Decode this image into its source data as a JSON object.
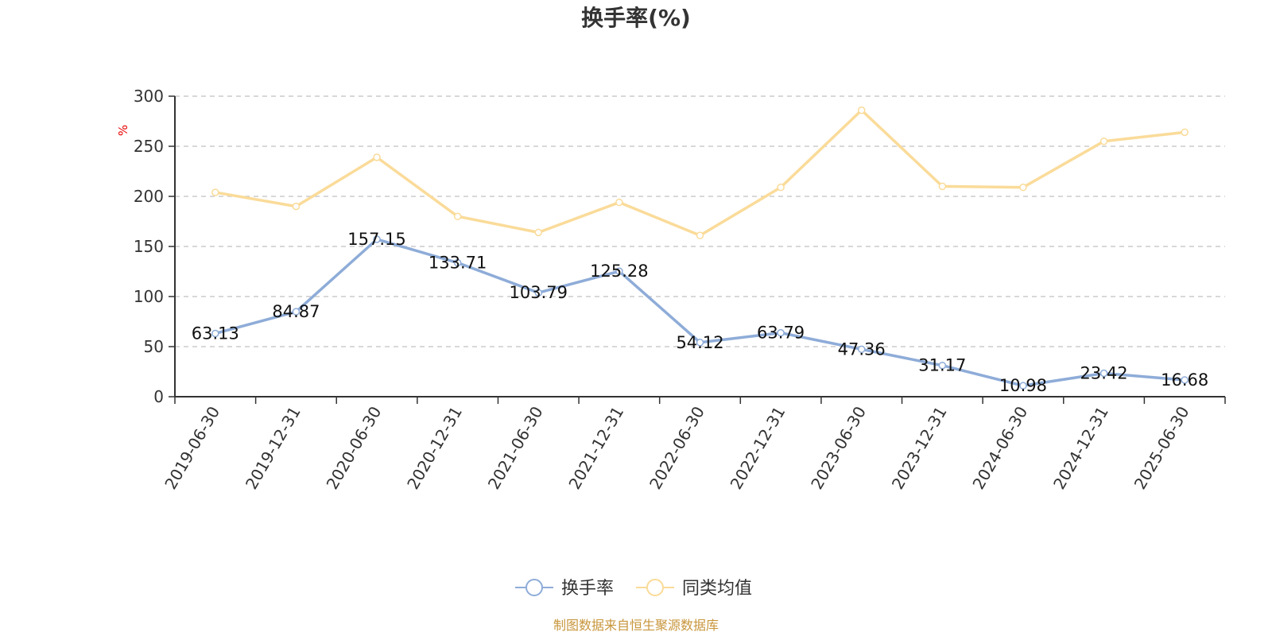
{
  "chart_data": {
    "type": "line",
    "title": "换手率(%)",
    "ylabel": "%",
    "ylim": [
      0,
      300
    ],
    "yticks": [
      0,
      50,
      100,
      150,
      200,
      250,
      300
    ],
    "categories": [
      "2019-06-30",
      "2019-12-31",
      "2020-06-30",
      "2020-12-31",
      "2021-06-30",
      "2021-12-31",
      "2022-06-30",
      "2022-12-31",
      "2023-06-30",
      "2023-12-31",
      "2024-06-30",
      "2024-12-31",
      "2025-06-30"
    ],
    "series": [
      {
        "name": "换手率",
        "color": "#8eacd8",
        "values": [
          63.13,
          84.87,
          157.15,
          133.71,
          103.79,
          125.28,
          54.12,
          63.79,
          47.36,
          31.17,
          10.98,
          23.42,
          16.68
        ],
        "labels": [
          "63.13",
          "84.87",
          "157.15",
          "133.71",
          "103.79",
          "125.28",
          "54.12",
          "63.79",
          "47.36",
          "31.17",
          "10.98",
          "23.42",
          "16.68"
        ]
      },
      {
        "name": "同类均值",
        "color": "#fadb99",
        "values": [
          204,
          190,
          239,
          180,
          164,
          194,
          161,
          209,
          286,
          210,
          209,
          255,
          264
        ]
      }
    ],
    "grid": true,
    "legend_position": "bottom"
  },
  "source": "制图数据来自恒生聚源数据库",
  "colors": {
    "axis": "#333333",
    "grid": "#cccccc",
    "unit": "#e60000",
    "source": "#c8963c"
  }
}
